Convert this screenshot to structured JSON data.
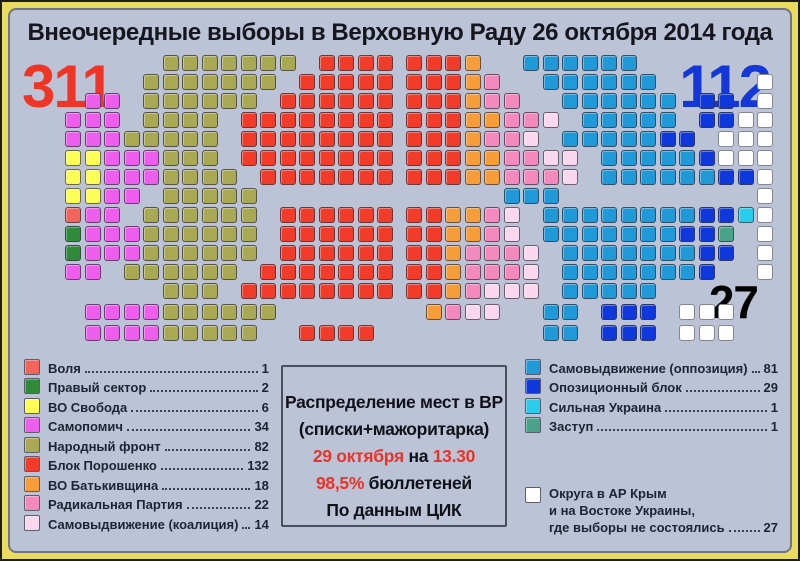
{
  "title": "Внеочередные выборы в Верховную Раду 26 октября 2014 года",
  "totals": {
    "coalition": "311",
    "opposition": "112",
    "not_held": "27"
  },
  "colors": {
    "background": "#bcc3d7",
    "frame": "#e9da60",
    "coalition_number": "#ee3526",
    "opposition_number": "#1437d8",
    "accent_red": "#e8352a",
    "parties": {
      "V": "#f3655c",
      "P": "#2f8a3a",
      "S": "#fdfd55",
      "M": "#ef5def",
      "N": "#a9a953",
      "B": "#f23b28",
      "T": "#f69d39",
      "R": "#f489bd",
      "K": "#fad7ef",
      "O": "#1f99d8",
      "D": "#0e38db",
      "U": "#27cdea",
      "Z": "#49a388",
      "W": "#ffffff"
    }
  },
  "info_box": {
    "line1": "Распределение мест в ВР",
    "line2": "(списки+мажоритарка)",
    "line3_red1": "29 октября",
    "line3_black": " на ",
    "line3_red2": "13.30",
    "line4_red": "98,5%",
    "line4_black": " бюллетеней",
    "line5": "По данным ЦИК"
  },
  "legend_left": [
    {
      "code": "V",
      "label": "Воля",
      "value": "1"
    },
    {
      "code": "P",
      "label": "Правый сектор",
      "value": "2"
    },
    {
      "code": "S",
      "label": "ВО Свобода",
      "value": "6"
    },
    {
      "code": "M",
      "label": "Самопомич",
      "value": "34"
    },
    {
      "code": "N",
      "label": "Народный фронт",
      "value": "82"
    },
    {
      "code": "B",
      "label": "Блок Порошенко",
      "value": "132"
    },
    {
      "code": "T",
      "label": "ВО Батькивщина",
      "value": "18"
    },
    {
      "code": "R",
      "label": "Радикальная Партия",
      "value": "22"
    },
    {
      "code": "K",
      "label": "Самовыдвижение (коалиция)",
      "value": "14"
    }
  ],
  "legend_right": [
    {
      "code": "O",
      "label": "Самовыдвижение (оппозиция)",
      "value": "81"
    },
    {
      "code": "D",
      "label": "Опозиционный блок",
      "value": "29"
    },
    {
      "code": "U",
      "label": "Сильная Украина",
      "value": "1"
    },
    {
      "code": "Z",
      "label": "Заступ",
      "value": "1"
    }
  ],
  "legend_not_held": {
    "code": "W",
    "line1": "Округа в АР Крым",
    "line2": "и на Востоке Украины,",
    "line3": "где выборы не состоялись",
    "value": "27"
  },
  "seat_map": {
    "left_rows": [
      ".......NNNNNNN.BBBB",
      "......NNNNNNN.BBBBB",
      "...MM.NNNNNN.BBBBBB",
      "..MMM.NNNN.BBBBBBBB",
      "..MMMNNNNN.BBBBBBBB",
      "..SSMMMNNN.BBBBBBBB",
      "..SSMMMNNNN.BBBBBBB",
      "..SSMM.NNNNN.......",
      "..VMM.NNNNNN.BBBBBB",
      "..PMMMNNNNNN.BBBBBB",
      "..PMMMNNNNNN.BBBBBB",
      "..MM.NNNNNN.BBBBBBB",
      ".......NNN.BBBBBBBB",
      "...MMMMNNNNNN......",
      "...MMMMNNNNN..BBBB."
    ],
    "right_rows": [
      "BBBT..OOOOOO.......",
      "BBBTR..OOOOOO.....W",
      "BBBTRR..OOOOOO.DD.W",
      "BBBTTRRK.OOOOO.DDWW",
      "BBBTRRK.OOOOODD.WWW",
      "BBBTTRRKK.OOOOODWWW",
      "BBBTTRRRK.OOOOOODDW",
      ".....OOO..........W",
      "BBTTRK.OOOOOOOODDUW",
      "BBTTRK.OOOOOOODDZ.W",
      "BBTRRRK.OOOOOOODD.W",
      "BBTRRRK.OOOOOOOD..W",
      "BBTRKKK.OOOOO......",
      ".TRKK..OO.DDD.WWW..",
      ".......OO.DDD.WWW.."
    ]
  },
  "chart_data": {
    "type": "parliament_seats",
    "title": "Внеочередные выборы в Верховную Раду 26 октября 2014 года",
    "total_seats": 450,
    "coalition_total": 311,
    "opposition_total": 112,
    "not_held_total": 27,
    "series": [
      {
        "name": "Воля",
        "seats": 1,
        "color": "#f3655c",
        "bloc": "coalition"
      },
      {
        "name": "Правый сектор",
        "seats": 2,
        "color": "#2f8a3a",
        "bloc": "coalition"
      },
      {
        "name": "ВО Свобода",
        "seats": 6,
        "color": "#fdfd55",
        "bloc": "coalition"
      },
      {
        "name": "Самопомич",
        "seats": 34,
        "color": "#ef5def",
        "bloc": "coalition"
      },
      {
        "name": "Народный фронт",
        "seats": 82,
        "color": "#a9a953",
        "bloc": "coalition"
      },
      {
        "name": "Блок Порошенко",
        "seats": 132,
        "color": "#f23b28",
        "bloc": "coalition"
      },
      {
        "name": "ВО Батькивщина",
        "seats": 18,
        "color": "#f69d39",
        "bloc": "coalition"
      },
      {
        "name": "Радикальная Партия",
        "seats": 22,
        "color": "#f489bd",
        "bloc": "coalition"
      },
      {
        "name": "Самовыдвижение (коалиция)",
        "seats": 14,
        "color": "#fad7ef",
        "bloc": "coalition"
      },
      {
        "name": "Самовыдвижение (оппозиция)",
        "seats": 81,
        "color": "#1f99d8",
        "bloc": "opposition"
      },
      {
        "name": "Опозиционный блок",
        "seats": 29,
        "color": "#0e38db",
        "bloc": "opposition"
      },
      {
        "name": "Сильная Украина",
        "seats": 1,
        "color": "#27cdea",
        "bloc": "opposition"
      },
      {
        "name": "Заступ",
        "seats": 1,
        "color": "#49a388",
        "bloc": "opposition"
      },
      {
        "name": "Округа в АР Крым и на Востоке Украины, где выборы не состоялись",
        "seats": 27,
        "color": "#ffffff",
        "bloc": "not_held"
      }
    ]
  }
}
